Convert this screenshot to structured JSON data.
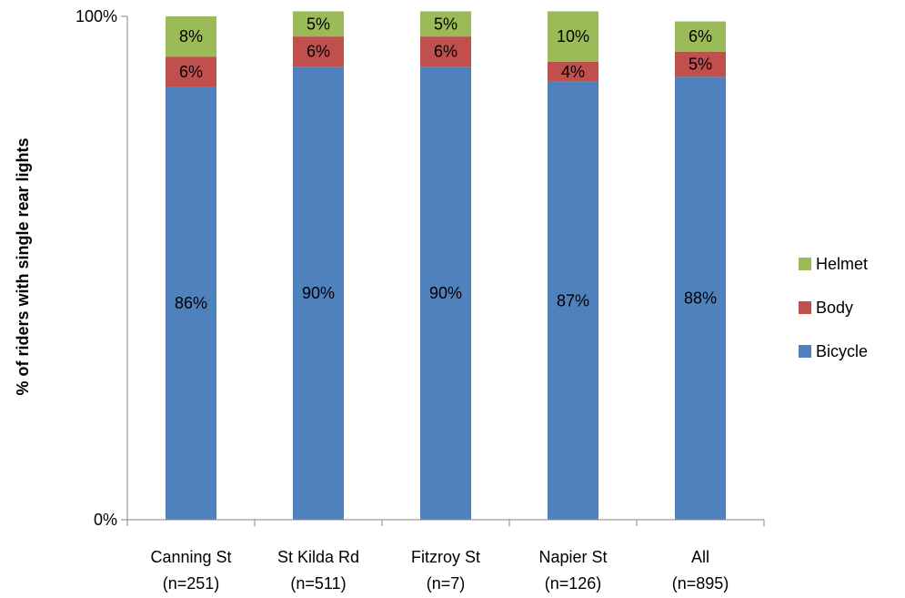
{
  "chart_data": {
    "type": "bar",
    "stacked": true,
    "categories": [
      "Canning St",
      "St Kilda Rd",
      "Fitzroy St",
      "Napier St",
      "All"
    ],
    "category_counts": [
      "(n=251)",
      "(n=511)",
      "(n=7)",
      "(n=126)",
      "(n=895)"
    ],
    "series": [
      {
        "name": "Bicycle",
        "values": [
          86,
          90,
          90,
          87,
          88
        ],
        "color": "#4F81BD"
      },
      {
        "name": "Body",
        "values": [
          6,
          6,
          6,
          4,
          5
        ],
        "color": "#C0504D"
      },
      {
        "name": "Helmet",
        "values": [
          8,
          5,
          5,
          10,
          6
        ],
        "color": "#9BBB59"
      }
    ],
    "title": "",
    "xlabel": "",
    "ylabel": "% of riders with single rear lights",
    "ylim": [
      0,
      100
    ],
    "y_ticks": [
      "0%",
      "100%"
    ],
    "legend_position": "right",
    "grid": false
  }
}
